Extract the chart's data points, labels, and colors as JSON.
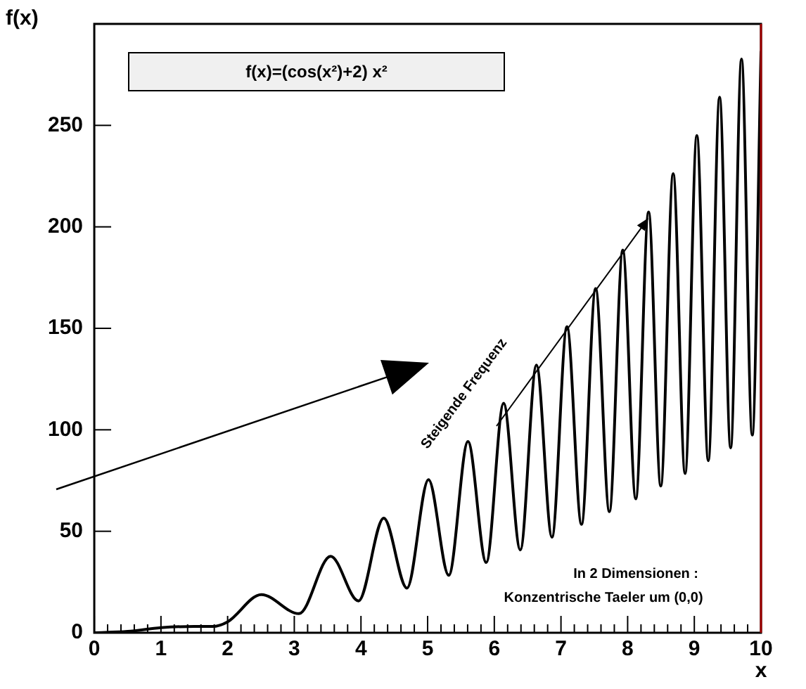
{
  "chart_data": {
    "type": "line",
    "title": "f(x)=(cos(x²)+2) x²",
    "xlabel": "x",
    "ylabel": "f(x)",
    "x": [
      0,
      0.5,
      1,
      1.5,
      1.772,
      2,
      2.507,
      3.07,
      3.545,
      3.963,
      4.342,
      4.69,
      5.013,
      5.317,
      5.605,
      5.879,
      6.14,
      6.39,
      6.632,
      6.865,
      7.09,
      7.308,
      7.52,
      7.726,
      7.927,
      8.122,
      8.314,
      8.497,
      8.683,
      8.862,
      9.038,
      9.21,
      9.379,
      9.545,
      9.708,
      9.869,
      10
    ],
    "series": [
      {
        "color": "#000000",
        "values": [
          0,
          0.7,
          2.5,
          3.1,
          3.1,
          5.4,
          18.8,
          9.4,
          37.7,
          15.7,
          56.5,
          22,
          75.4,
          28.3,
          94.2,
          34.6,
          113.1,
          40.8,
          131.9,
          47.1,
          150.8,
          53.4,
          169.6,
          59.7,
          188.5,
          66,
          207.3,
          72.3,
          226.2,
          78.5,
          245,
          84.8,
          263.9,
          91.1,
          282.7,
          97.4,
          286.2
        ]
      }
    ],
    "xlim": [
      0,
      10
    ],
    "xticks": [
      0,
      1,
      2,
      3,
      4,
      5,
      6,
      7,
      8,
      9,
      10
    ],
    "ylim": [
      0,
      300
    ],
    "yticks": [
      0,
      50,
      100,
      150,
      200,
      250
    ],
    "marker": "none",
    "line_style": "solid",
    "legend": false,
    "annotations": [
      "Steigende Frequenz",
      "In 2 Dimensionen :",
      "Konzentrische Taeler um (0,0)"
    ]
  }
}
